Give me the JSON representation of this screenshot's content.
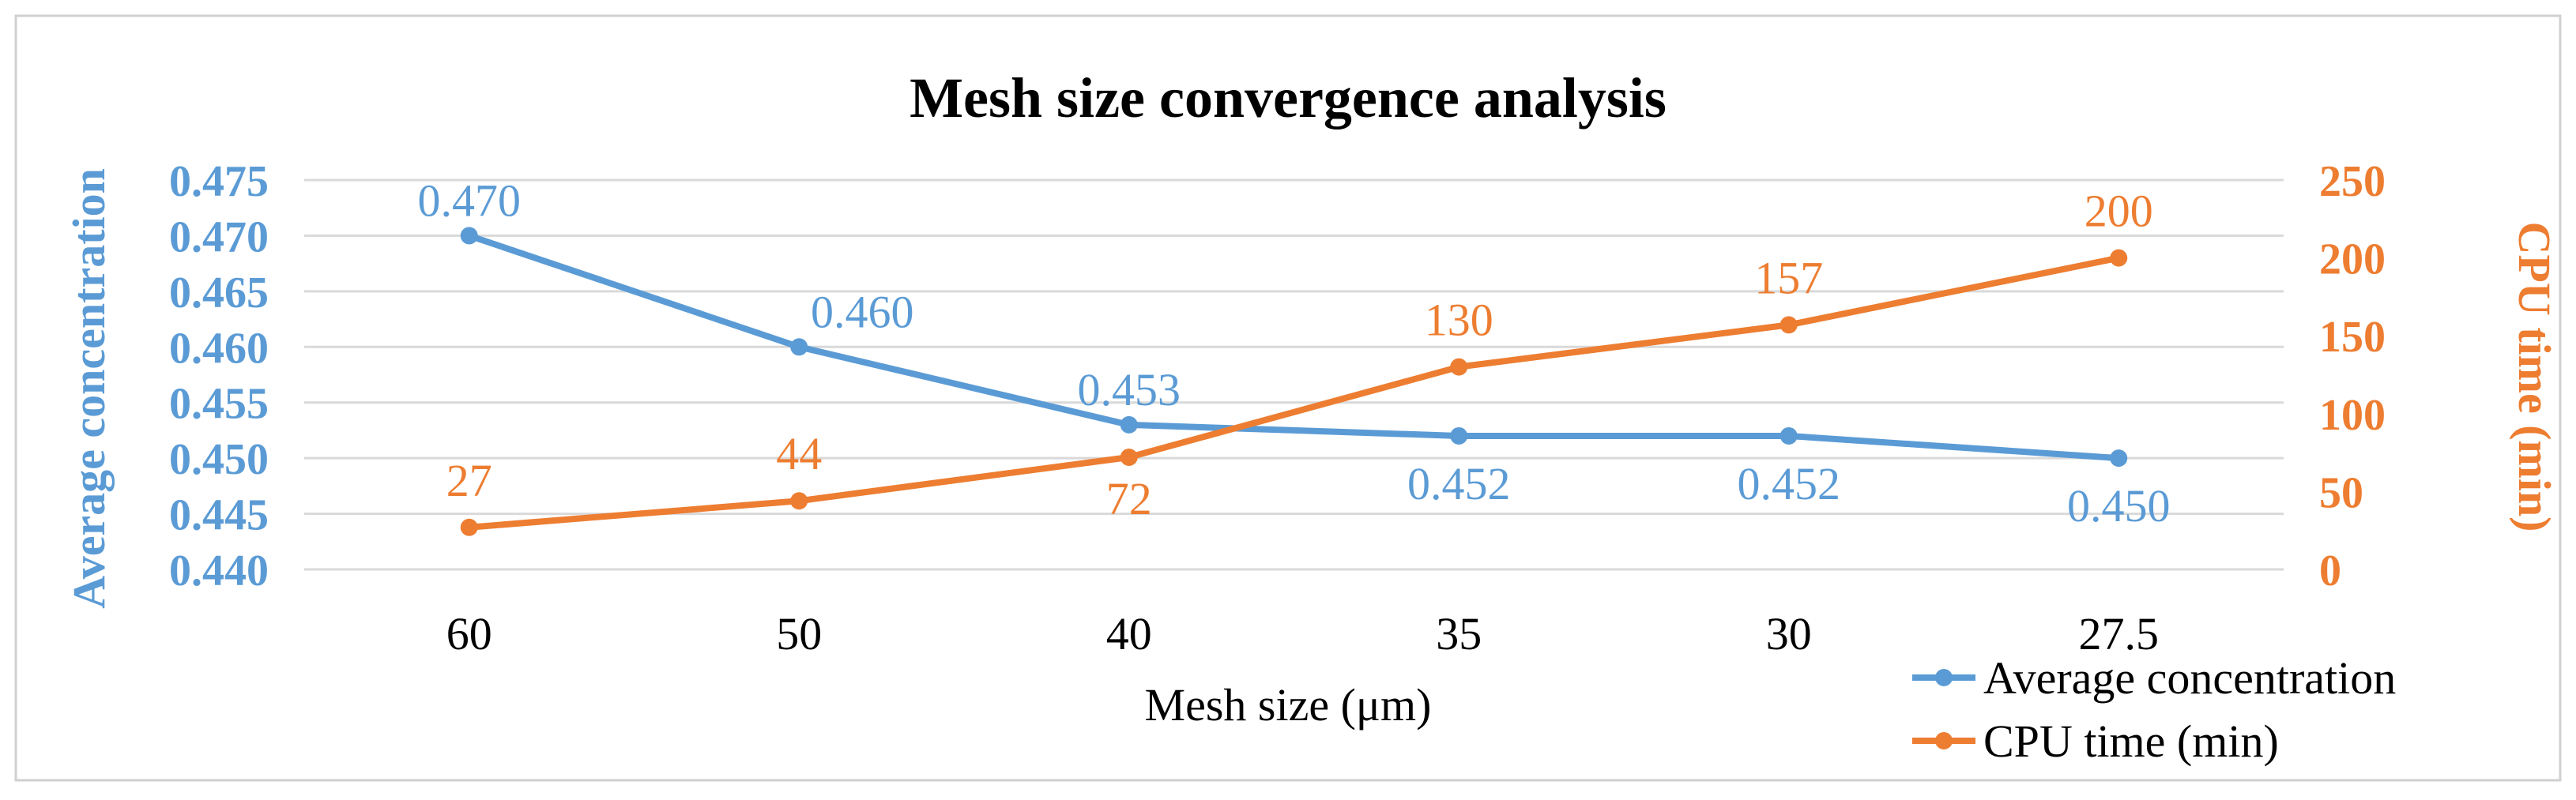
{
  "chart_data": {
    "type": "line",
    "title": "Mesh size convergence analysis",
    "xlabel": "Mesh size (μm)",
    "categories": [
      "60",
      "50",
      "40",
      "35",
      "30",
      "27.5"
    ],
    "y_left": {
      "label": "Average concentration",
      "ticks": [
        "0.440",
        "0.445",
        "0.450",
        "0.455",
        "0.460",
        "0.465",
        "0.470",
        "0.475"
      ],
      "range": [
        0.44,
        0.475
      ]
    },
    "y_right": {
      "label": "CPU time (min)",
      "ticks": [
        "0",
        "50",
        "100",
        "150",
        "200",
        "250"
      ],
      "range": [
        0,
        250
      ]
    },
    "series": [
      {
        "name": "Average concentration",
        "axis": "left",
        "color": "#5B9BD5",
        "values": [
          0.47,
          0.46,
          0.453,
          0.452,
          0.452,
          0.45
        ],
        "labels": [
          "0.470",
          "0.460",
          "0.453",
          "0.452",
          "0.452",
          "0.450"
        ]
      },
      {
        "name": "CPU time (min)",
        "axis": "right",
        "color": "#ED7D31",
        "values": [
          27,
          44,
          72,
          130,
          157,
          200
        ],
        "labels": [
          "27",
          "44",
          "72",
          "130",
          "157",
          "200"
        ]
      }
    ],
    "legend_position": "bottom-right",
    "grid": true
  }
}
